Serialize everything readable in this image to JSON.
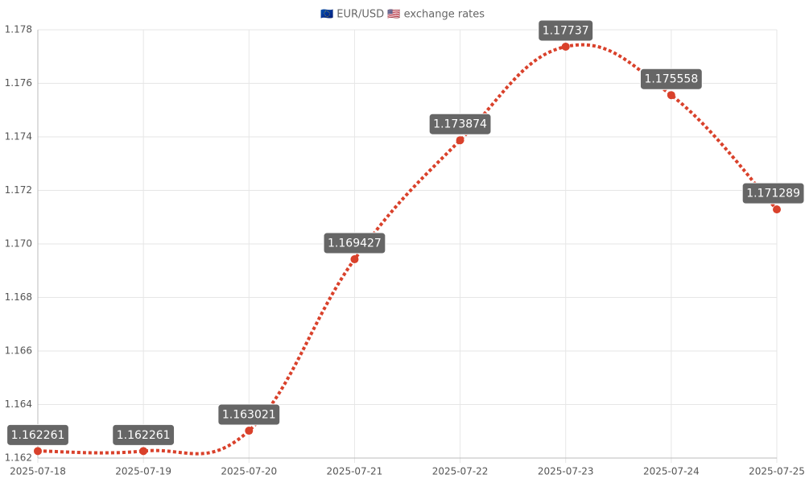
{
  "chart_data": {
    "type": "line",
    "title": "🇪🇺 EUR/USD 🇺🇸 exchange rates",
    "categories": [
      "2025-07-18",
      "2025-07-19",
      "2025-07-20",
      "2025-07-21",
      "2025-07-22",
      "2025-07-23",
      "2025-07-24",
      "2025-07-25"
    ],
    "series": [
      {
        "name": "EUR/USD",
        "color": "#d9412b",
        "values": [
          1.162261,
          1.162261,
          1.163021,
          1.169427,
          1.173874,
          1.17737,
          1.175558,
          1.171289
        ]
      }
    ],
    "ylim": [
      1.162,
      1.178
    ],
    "yticks": [
      1.162,
      1.164,
      1.166,
      1.168,
      {
        "value": 1.17,
        "label": "1.170"
      },
      1.172,
      1.174,
      1.176,
      1.178
    ],
    "grid": true
  }
}
